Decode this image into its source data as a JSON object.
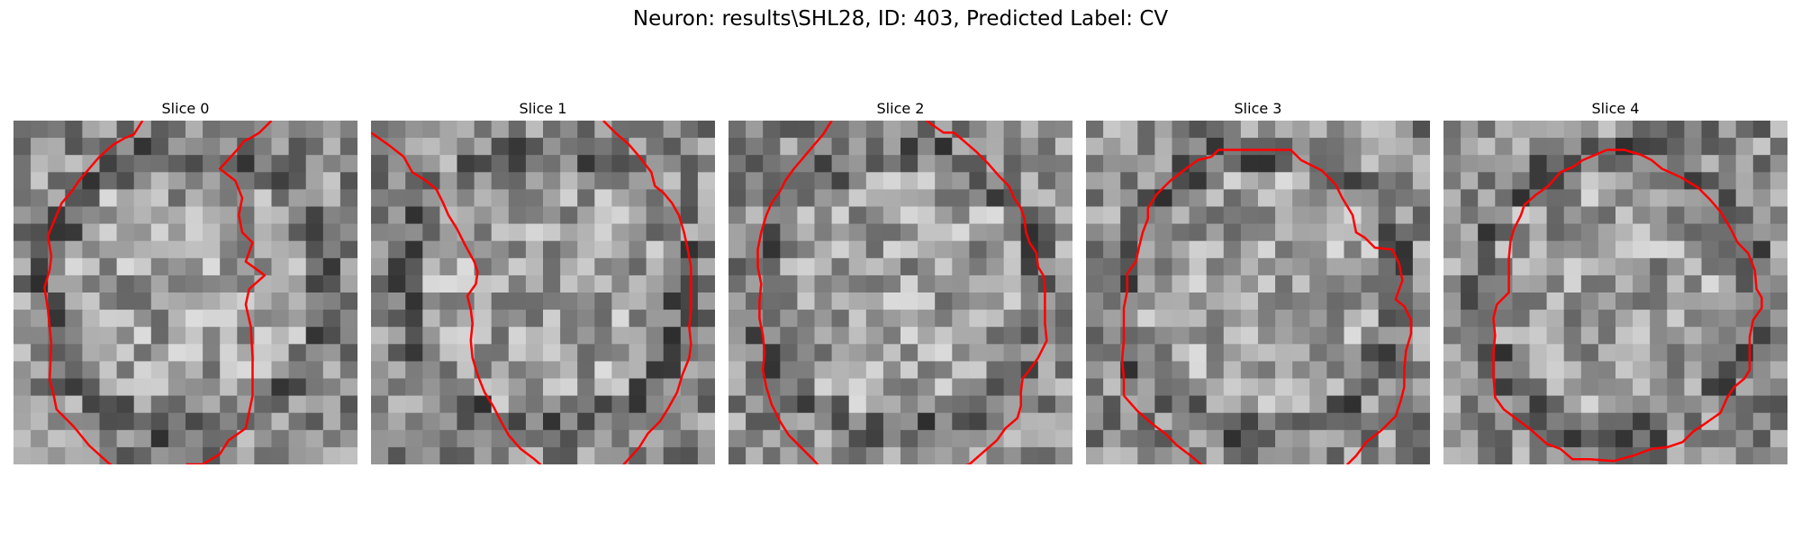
{
  "figure": {
    "title": "Neuron: results\\SHL28, ID: 403, Predicted Label: CV"
  },
  "colors": {
    "contour": "#ff0000",
    "background": "#ffffff"
  },
  "panels": [
    {
      "title": "Slice 0",
      "contour": [
        [
          14.5,
          -0.5
        ],
        [
          13.8,
          0.2
        ],
        [
          13.3,
          0.5
        ],
        [
          12.9,
          0.7
        ],
        [
          12.5,
          1.2
        ],
        [
          11.5,
          2.3
        ],
        [
          12.4,
          3.0
        ],
        [
          12.8,
          4.0
        ],
        [
          12.6,
          5.0
        ],
        [
          12.8,
          6.0
        ],
        [
          13.4,
          6.6
        ],
        [
          13.0,
          7.7
        ],
        [
          13.7,
          8.2
        ],
        [
          14.1,
          8.5
        ],
        [
          13.2,
          9.3
        ],
        [
          13.0,
          10.2
        ],
        [
          13.3,
          11.5
        ],
        [
          13.4,
          13.3
        ],
        [
          13.4,
          15.5
        ],
        [
          13.0,
          17.4
        ],
        [
          12.0,
          18.1
        ],
        [
          11.5,
          18.9
        ],
        [
          10.5,
          19.5
        ],
        [
          9.6,
          19.5
        ],
        [
          9.0,
          20.3
        ],
        [
          7.7,
          20.3
        ],
        [
          6.2,
          20.3
        ],
        [
          5.0,
          19.4
        ],
        [
          3.9,
          18.4
        ],
        [
          3.0,
          17.3
        ],
        [
          2.0,
          16.3
        ],
        [
          1.8,
          15.3
        ],
        [
          1.6,
          14.6
        ],
        [
          1.7,
          12.5
        ],
        [
          1.6,
          11.5
        ],
        [
          1.5,
          10.5
        ],
        [
          1.3,
          9.2
        ],
        [
          1.6,
          8.2
        ],
        [
          1.7,
          7.4
        ],
        [
          1.5,
          6.2
        ],
        [
          2.0,
          5.0
        ],
        [
          2.3,
          4.3
        ],
        [
          2.9,
          3.6
        ],
        [
          3.3,
          3.0
        ],
        [
          3.9,
          2.3
        ],
        [
          4.5,
          1.6
        ],
        [
          5.3,
          0.9
        ],
        [
          6.0,
          0.5
        ],
        [
          6.5,
          0.3
        ],
        [
          7.0,
          -0.5
        ]
      ]
    },
    {
      "title": "Slice 1",
      "contour": [
        [
          13.0,
          -0.5
        ],
        [
          13.7,
          0.2
        ],
        [
          14.5,
          0.9
        ],
        [
          15.1,
          1.6
        ],
        [
          15.8,
          2.5
        ],
        [
          16.0,
          3.3
        ],
        [
          16.5,
          3.7
        ],
        [
          17.0,
          4.3
        ],
        [
          17.4,
          5.0
        ],
        [
          17.7,
          6.0
        ],
        [
          17.9,
          6.9
        ],
        [
          18.1,
          8.0
        ],
        [
          18.1,
          9.0
        ],
        [
          18.1,
          10.5
        ],
        [
          18.0,
          11.5
        ],
        [
          18.1,
          12.5
        ],
        [
          18.0,
          13.3
        ],
        [
          17.6,
          14.3
        ],
        [
          17.3,
          15.3
        ],
        [
          16.8,
          16.2
        ],
        [
          16.3,
          17.0
        ],
        [
          15.6,
          17.7
        ],
        [
          15.1,
          18.5
        ],
        [
          14.2,
          19.5
        ],
        [
          14.0,
          19.9
        ]
      ],
      "contour2": [
        [
          -0.5,
          0.2
        ],
        [
          0.5,
          0.9
        ],
        [
          1.4,
          1.6
        ],
        [
          1.9,
          2.5
        ],
        [
          2.7,
          3.0
        ],
        [
          3.3,
          3.5
        ],
        [
          3.7,
          4.3
        ],
        [
          4.0,
          5.0
        ],
        [
          4.5,
          5.8
        ],
        [
          5.0,
          6.8
        ],
        [
          5.5,
          7.7
        ],
        [
          5.7,
          8.3
        ],
        [
          5.6,
          9.0
        ],
        [
          5.1,
          9.7
        ],
        [
          5.3,
          10.5
        ],
        [
          5.4,
          11.3
        ],
        [
          5.3,
          12.3
        ],
        [
          5.4,
          13.3
        ],
        [
          5.7,
          14.3
        ],
        [
          6.1,
          15.3
        ],
        [
          6.6,
          16.1
        ],
        [
          7.0,
          16.9
        ],
        [
          7.5,
          17.8
        ],
        [
          8.2,
          18.6
        ],
        [
          9.0,
          19.2
        ],
        [
          9.8,
          19.9
        ]
      ]
    },
    {
      "title": "Slice 2",
      "contour": [
        [
          5.5,
          -0.5
        ],
        [
          5.0,
          0.3
        ],
        [
          4.4,
          1.0
        ],
        [
          3.9,
          1.6
        ],
        [
          3.3,
          2.3
        ],
        [
          2.8,
          3.0
        ],
        [
          2.5,
          3.6
        ],
        [
          2.0,
          4.3
        ],
        [
          1.7,
          5.0
        ],
        [
          1.4,
          6.0
        ],
        [
          1.2,
          7.0
        ],
        [
          1.2,
          8.0
        ],
        [
          1.4,
          9.0
        ],
        [
          1.3,
          10.0
        ],
        [
          1.3,
          11.0
        ],
        [
          1.5,
          12.0
        ],
        [
          1.6,
          13.0
        ],
        [
          1.5,
          14.0
        ],
        [
          1.7,
          15.0
        ],
        [
          2.0,
          16.0
        ],
        [
          2.5,
          17.0
        ],
        [
          3.0,
          17.8
        ],
        [
          3.8,
          18.6
        ],
        [
          4.5,
          19.3
        ],
        [
          5.0,
          19.9
        ]
      ],
      "contour2": [
        [
          11.0,
          -0.5
        ],
        [
          12.0,
          0.2
        ],
        [
          12.6,
          0.2
        ],
        [
          13.2,
          0.7
        ],
        [
          13.9,
          1.3
        ],
        [
          14.6,
          2.0
        ],
        [
          15.2,
          2.7
        ],
        [
          15.8,
          3.3
        ],
        [
          16.1,
          4.0
        ],
        [
          16.5,
          4.6
        ],
        [
          16.7,
          5.2
        ],
        [
          16.8,
          6.0
        ],
        [
          17.0,
          6.6
        ],
        [
          17.4,
          7.2
        ],
        [
          17.5,
          8.0
        ],
        [
          17.8,
          8.5
        ],
        [
          17.9,
          9.3
        ],
        [
          17.9,
          10.3
        ],
        [
          17.9,
          11.3
        ],
        [
          18.0,
          12.3
        ],
        [
          17.5,
          13.3
        ],
        [
          17.0,
          14.0
        ],
        [
          16.6,
          14.5
        ],
        [
          16.5,
          15.3
        ],
        [
          16.5,
          16.1
        ],
        [
          16.3,
          16.8
        ],
        [
          15.6,
          17.4
        ],
        [
          15.1,
          18.1
        ],
        [
          14.3,
          18.8
        ],
        [
          13.5,
          19.5
        ],
        [
          12.0,
          19.9
        ]
      ]
    },
    {
      "title": "Slice 3",
      "contour": [
        [
          6.8,
          1.6
        ],
        [
          7.2,
          1.2
        ],
        [
          8.0,
          1.2
        ],
        [
          9.5,
          1.2
        ],
        [
          11.4,
          1.2
        ],
        [
          12.0,
          1.8
        ],
        [
          13.2,
          2.4
        ],
        [
          14.0,
          3.2
        ],
        [
          14.4,
          4.0
        ],
        [
          15.0,
          5.0
        ],
        [
          15.2,
          6.0
        ],
        [
          15.7,
          6.3
        ],
        [
          16.3,
          6.9
        ],
        [
          17.3,
          7.0
        ],
        [
          17.7,
          7.8
        ],
        [
          17.9,
          8.8
        ],
        [
          17.5,
          9.9
        ],
        [
          18.0,
          10.3
        ],
        [
          18.4,
          11.1
        ],
        [
          18.4,
          11.9
        ],
        [
          18.1,
          12.9
        ],
        [
          18.0,
          14.0
        ],
        [
          18.0,
          15.0
        ],
        [
          17.8,
          15.8
        ],
        [
          17.5,
          16.7
        ],
        [
          16.7,
          17.5
        ],
        [
          15.8,
          18.2
        ],
        [
          15.2,
          19.0
        ],
        [
          14.4,
          19.8
        ]
      ],
      "contour2": [
        [
          1.7,
          15.5
        ],
        [
          2.5,
          16.4
        ],
        [
          3.3,
          17.1
        ],
        [
          4.1,
          17.7
        ],
        [
          4.8,
          18.4
        ],
        [
          5.6,
          19.0
        ],
        [
          6.3,
          19.6
        ],
        [
          7.2,
          19.6
        ],
        [
          7.7,
          19.9
        ],
        [
          6.8,
          19.9
        ]
      ],
      "contour3": [
        [
          1.7,
          15.5
        ],
        [
          1.7,
          14.5
        ],
        [
          1.6,
          13.4
        ],
        [
          1.7,
          12.3
        ],
        [
          1.7,
          11.2
        ],
        [
          1.7,
          10.4
        ],
        [
          1.9,
          9.4
        ],
        [
          1.9,
          8.4
        ],
        [
          2.4,
          7.7
        ],
        [
          2.6,
          6.8
        ],
        [
          2.8,
          6.0
        ],
        [
          3.1,
          5.2
        ],
        [
          3.1,
          4.6
        ],
        [
          3.6,
          3.8
        ],
        [
          4.4,
          3.0
        ],
        [
          5.3,
          2.3
        ],
        [
          6.0,
          1.8
        ],
        [
          6.8,
          1.6
        ]
      ]
    },
    {
      "title": "Slice 4",
      "contour": [
        [
          9.0,
          1.2
        ],
        [
          10.0,
          1.2
        ],
        [
          11.0,
          1.5
        ],
        [
          11.6,
          1.8
        ],
        [
          12.2,
          2.3
        ],
        [
          13.3,
          2.8
        ],
        [
          14.3,
          3.4
        ],
        [
          15.0,
          4.1
        ],
        [
          15.6,
          4.8
        ],
        [
          16.2,
          5.8
        ],
        [
          16.6,
          6.6
        ],
        [
          17.2,
          7.2
        ],
        [
          17.6,
          8.2
        ],
        [
          17.7,
          9.3
        ],
        [
          18.0,
          9.8
        ],
        [
          18.0,
          10.4
        ],
        [
          17.5,
          11.1
        ],
        [
          17.3,
          12.1
        ],
        [
          17.3,
          13.0
        ],
        [
          17.3,
          14.0
        ],
        [
          17.0,
          14.5
        ],
        [
          16.4,
          15.0
        ],
        [
          16.0,
          15.6
        ],
        [
          15.6,
          16.5
        ],
        [
          14.6,
          17.2
        ],
        [
          14.0,
          17.6
        ],
        [
          13.4,
          18.2
        ],
        [
          12.5,
          18.5
        ],
        [
          11.6,
          18.6
        ],
        [
          10.5,
          19.0
        ],
        [
          9.4,
          19.3
        ],
        [
          8.0,
          19.2
        ],
        [
          7.0,
          19.2
        ],
        [
          6.3,
          18.6
        ],
        [
          5.5,
          18.3
        ],
        [
          4.6,
          17.5
        ],
        [
          3.8,
          16.9
        ],
        [
          3.0,
          16.3
        ],
        [
          2.5,
          15.6
        ],
        [
          2.4,
          14.3
        ],
        [
          2.4,
          13.0
        ],
        [
          2.5,
          12.0
        ],
        [
          2.4,
          11.0
        ],
        [
          2.6,
          10.2
        ],
        [
          3.3,
          9.5
        ],
        [
          3.3,
          8.6
        ],
        [
          3.3,
          7.5
        ],
        [
          3.4,
          6.5
        ],
        [
          3.6,
          5.8
        ],
        [
          4.0,
          5.0
        ],
        [
          4.2,
          4.4
        ],
        [
          4.9,
          3.8
        ],
        [
          5.6,
          3.3
        ],
        [
          6.3,
          2.5
        ],
        [
          7.0,
          2.2
        ],
        [
          7.6,
          1.8
        ],
        [
          8.3,
          1.5
        ],
        [
          9.0,
          1.2
        ]
      ]
    }
  ]
}
